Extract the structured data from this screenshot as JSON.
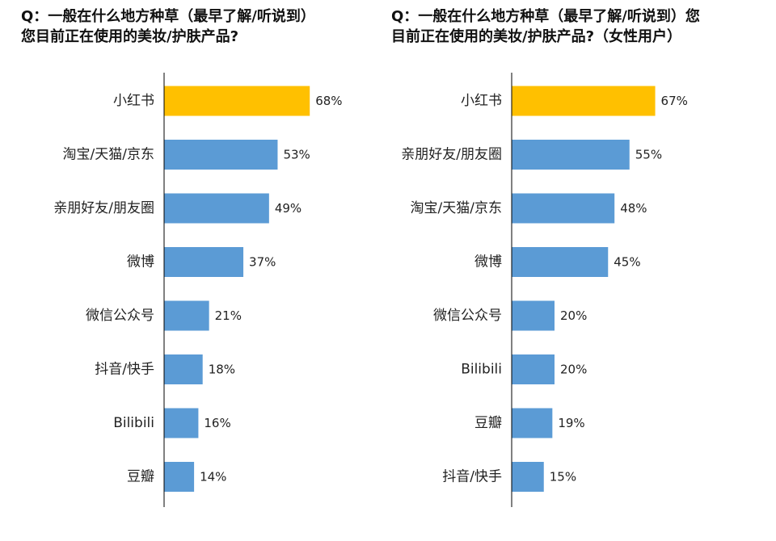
{
  "colors": {
    "highlight": "#FFC000",
    "bar": "#5B9BD5",
    "axis": "#000000"
  },
  "chart_data": [
    {
      "type": "bar",
      "orientation": "horizontal",
      "title": [
        "Q：一般在什么地方种草（最早了解/听说到）",
        "您目前正在使用的美妆/护肤产品?"
      ],
      "categories": [
        "小红书",
        "淘宝/天猫/京东",
        "亲朋好友/朋友圈",
        "微博",
        "微信公众号",
        "抖音/快手",
        "Bilibili",
        "豆瓣"
      ],
      "values": [
        68,
        53,
        49,
        37,
        21,
        18,
        16,
        14
      ],
      "value_labels": [
        "68%",
        "53%",
        "49%",
        "37%",
        "21%",
        "18%",
        "16%",
        "14%"
      ],
      "highlight_index": 0,
      "xlim": [
        0,
        100
      ],
      "grid": false
    },
    {
      "type": "bar",
      "orientation": "horizontal",
      "title": [
        "Q：一般在什么地方种草（最早了解/听说到）您",
        "目前正在使用的美妆/护肤产品?（女性用户）"
      ],
      "categories": [
        "小红书",
        "亲朋好友/朋友圈",
        "淘宝/天猫/京东",
        "微博",
        "微信公众号",
        "Bilibili",
        "豆瓣",
        "抖音/快手"
      ],
      "values": [
        67,
        55,
        48,
        45,
        20,
        20,
        19,
        15
      ],
      "value_labels": [
        "67%",
        "55%",
        "48%",
        "45%",
        "20%",
        "20%",
        "19%",
        "15%"
      ],
      "highlight_index": 0,
      "xlim": [
        0,
        100
      ],
      "grid": false
    }
  ]
}
